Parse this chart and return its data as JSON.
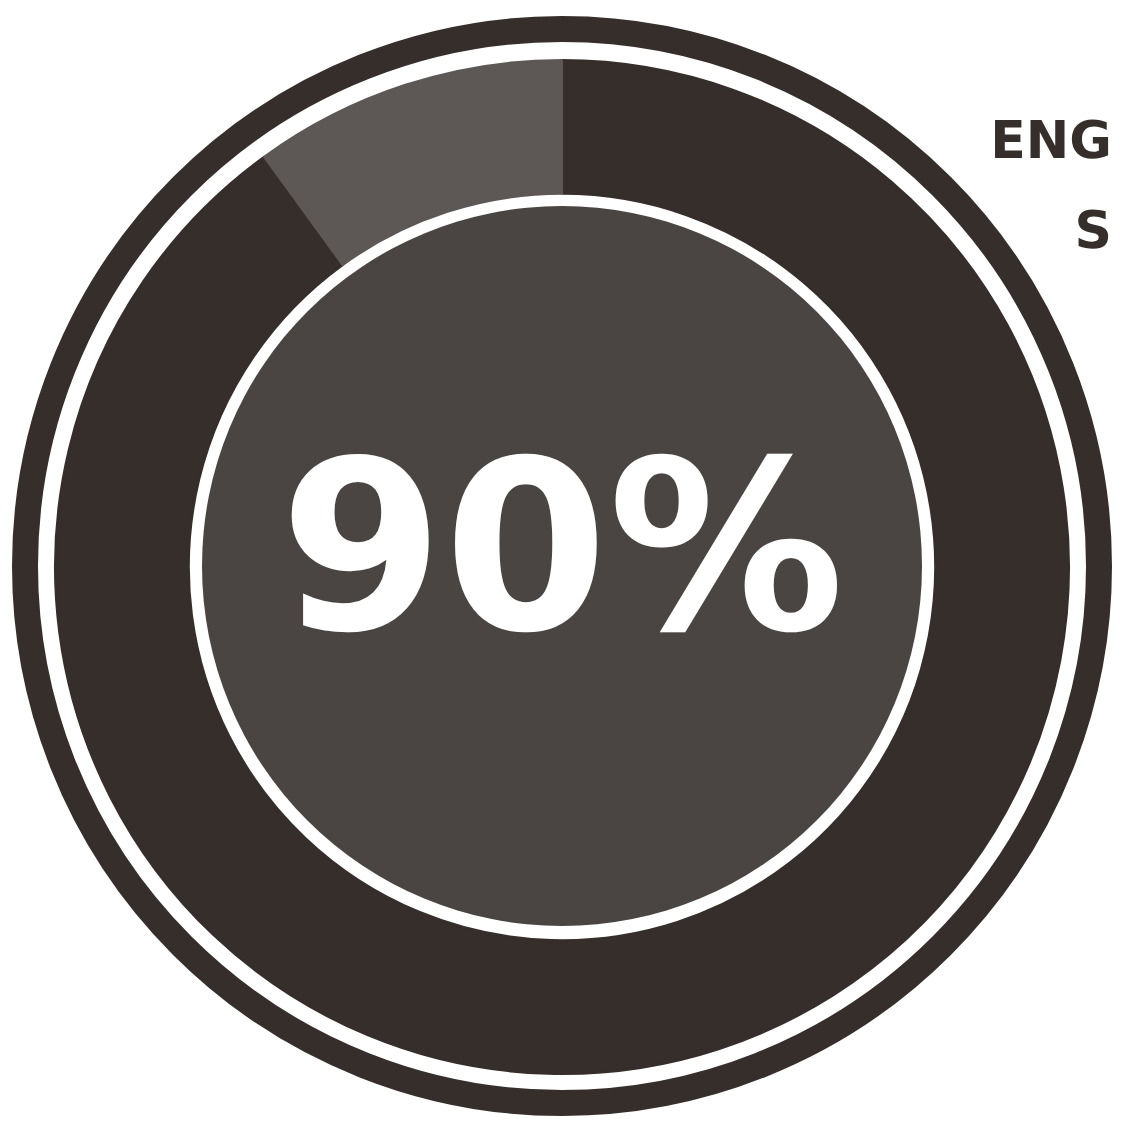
{
  "chart_data": {
    "type": "donut",
    "categories": [
      null,
      null
    ],
    "values": [
      90,
      10
    ],
    "colors": [
      "#362e2b",
      "#5d5856"
    ],
    "legend": false,
    "annotations": [
      "90%",
      "ENG",
      "S"
    ]
  }
}
